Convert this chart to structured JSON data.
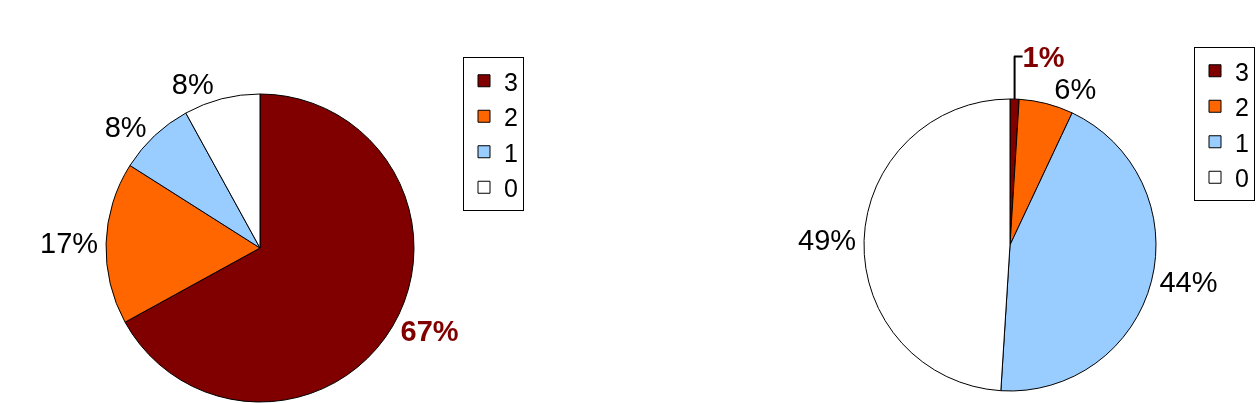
{
  "chart_data": [
    {
      "type": "pie",
      "categories": [
        "3",
        "2",
        "1",
        "0"
      ],
      "values": [
        67,
        17,
        8,
        8
      ],
      "colors": [
        "#800000",
        "#ff6600",
        "#99ccff",
        "#ffffff"
      ],
      "value_labels": [
        "67%",
        "17%",
        "8%",
        "8%"
      ],
      "legend": "top right"
    },
    {
      "type": "pie",
      "categories": [
        "3",
        "2",
        "1",
        "0"
      ],
      "values": [
        1,
        6,
        44,
        49
      ],
      "colors": [
        "#800000",
        "#ff6600",
        "#99ccff",
        "#ffffff"
      ],
      "value_labels": [
        "1%",
        "6%",
        "44%",
        "49%"
      ],
      "legend": "top right"
    }
  ]
}
